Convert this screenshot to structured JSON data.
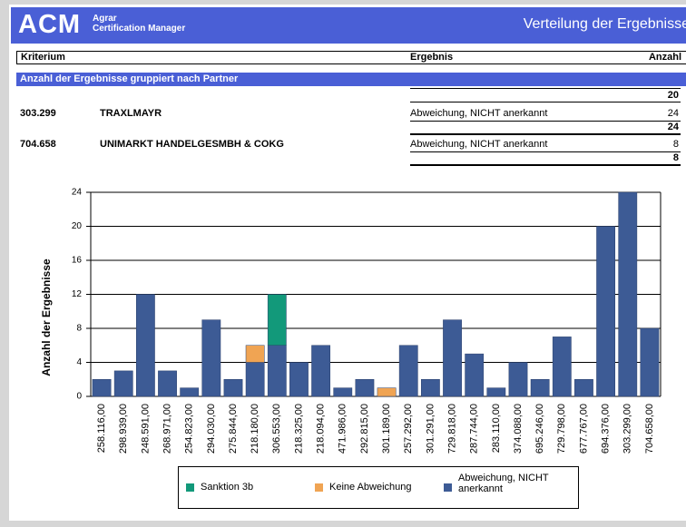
{
  "header": {
    "logo": "ACM",
    "subtitle_top": "Agrar",
    "subtitle_bottom": "Certification Manager",
    "title": "Verteilung der Ergebnisse"
  },
  "table": {
    "columns": [
      "Kriterium",
      "Ergebnis",
      "Anzahl"
    ],
    "group": "Anzahl der Ergebnisse gruppiert nach Partner",
    "top_total": 20,
    "rows": [
      {
        "id": "303.299",
        "name": "TRAXLMAYR",
        "result": "Abweichung, NICHT anerkannt",
        "count": 24,
        "total": 24
      },
      {
        "id": "704.658",
        "name": "UNIMARKT HANDELGESMBH & COKG",
        "result": "Abweichung, NICHT anerkannt",
        "count": 8,
        "total": 8
      }
    ]
  },
  "chart_data": {
    "type": "stacked_bar",
    "y_label": "Anzahl der Ergebnisse",
    "categories": [
      "258.116,00",
      "298.939,00",
      "248.591,00",
      "268.971,00",
      "254.823,00",
      "294.030,00",
      "275.844,00",
      "218.180,00",
      "306.553,00",
      "218.325,00",
      "218.094,00",
      "471.986,00",
      "292.815,00",
      "301.189,00",
      "257.292,00",
      "301.291,00",
      "729.818,00",
      "287.744,00",
      "283.110,00",
      "374.088,00",
      "695.246,00",
      "729.798,00",
      "677.767,00",
      "694.376,00",
      "303.299,00",
      "704.658,00"
    ],
    "series": [
      {
        "name": "Abweichung, NICHT anerkannt",
        "color": "#3d5b95",
        "values": [
          2,
          3,
          12,
          3,
          1,
          9,
          2,
          4,
          6,
          4,
          6,
          1,
          2,
          0,
          6,
          2,
          9,
          5,
          1,
          4,
          2,
          7,
          2,
          20,
          24,
          8
        ]
      },
      {
        "name": "Keine Abweichung",
        "color": "#f0a453",
        "values": [
          0,
          0,
          0,
          0,
          0,
          0,
          0,
          2,
          0,
          0,
          0,
          0,
          0,
          1,
          0,
          0,
          0,
          0,
          0,
          0,
          0,
          0,
          0,
          0,
          0,
          0
        ]
      },
      {
        "name": "Sanktion 3b",
        "color": "#12997a",
        "values": [
          0,
          0,
          0,
          0,
          0,
          0,
          0,
          0,
          6,
          0,
          0,
          0,
          0,
          0,
          0,
          0,
          0,
          0,
          0,
          0,
          0,
          0,
          0,
          0,
          0,
          0
        ]
      }
    ],
    "legend_order": [
      2,
      1,
      0
    ],
    "ylim": [
      0,
      24
    ],
    "yticks": [
      0,
      4,
      8,
      12,
      16,
      20,
      24
    ],
    "grid": true
  }
}
